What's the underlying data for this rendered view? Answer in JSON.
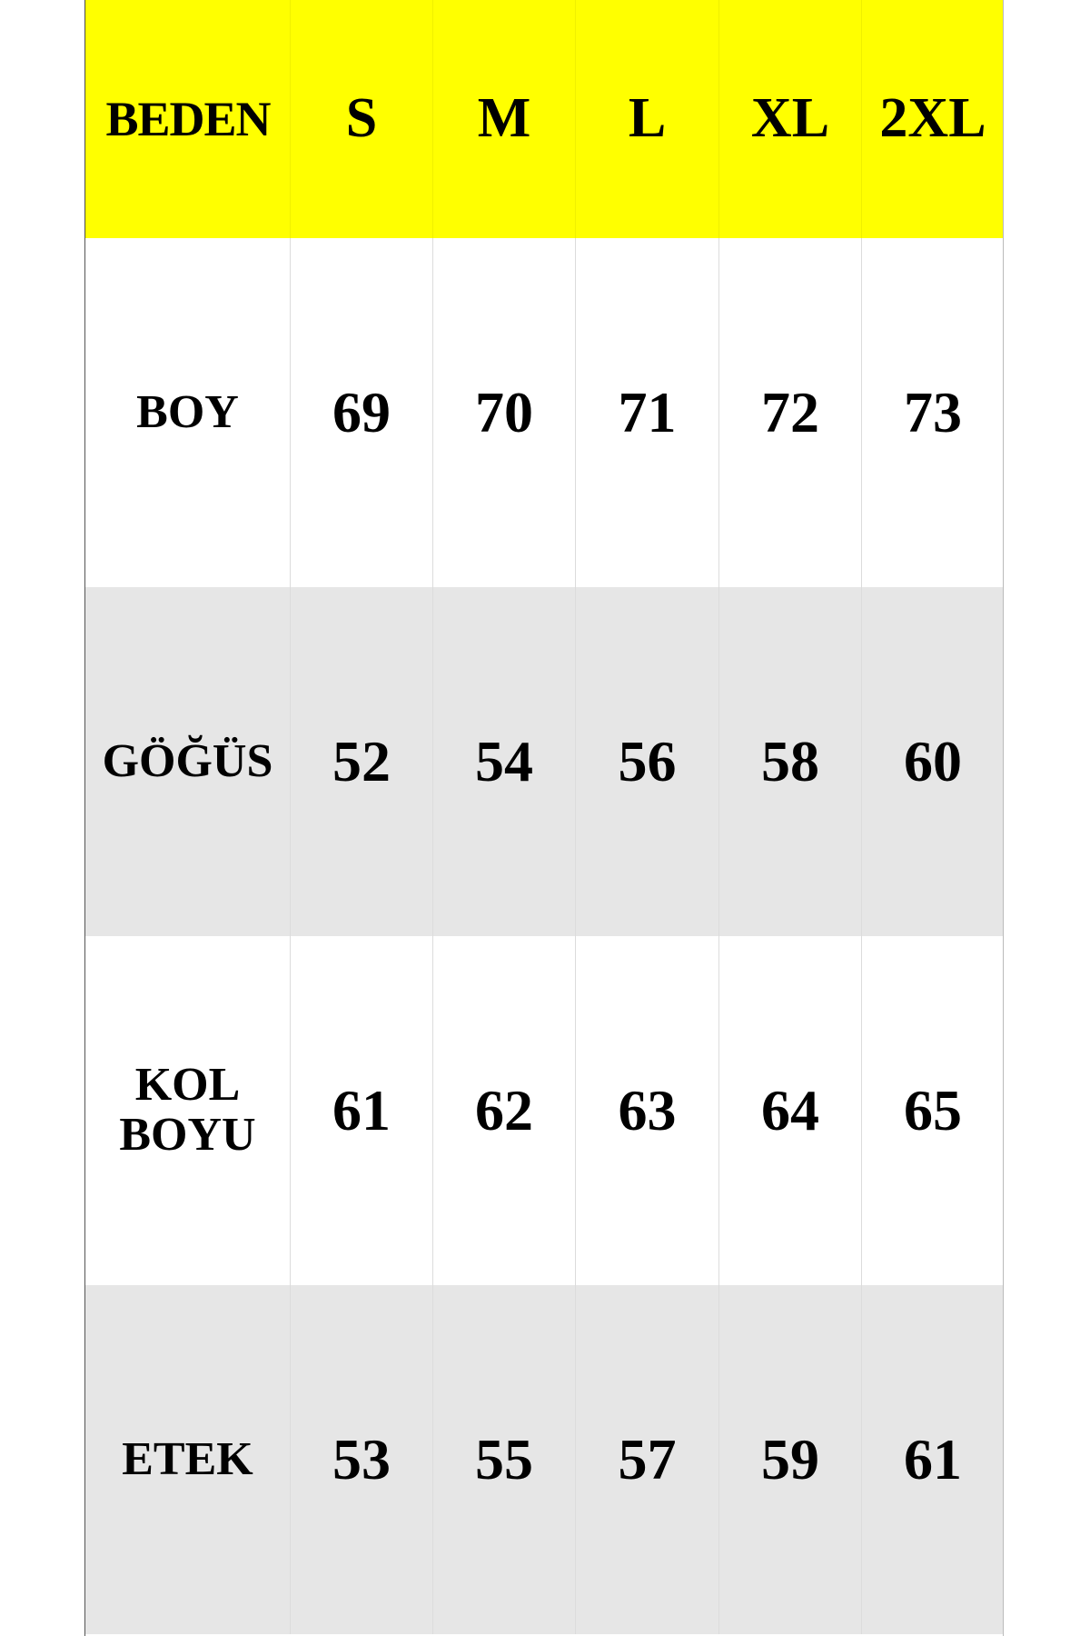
{
  "header": {
    "label": "BEDEN",
    "sizes": [
      "S",
      "M",
      "L",
      "XL",
      "2XL"
    ]
  },
  "rows": [
    {
      "label": "BOY",
      "values": [
        "69",
        "70",
        "71",
        "72",
        "73"
      ]
    },
    {
      "label": "GÖĞÜS",
      "values": [
        "52",
        "54",
        "56",
        "58",
        "60"
      ]
    },
    {
      "label_line1": "KOL",
      "label_line2": "BOYU",
      "values": [
        "61",
        "62",
        "63",
        "64",
        "65"
      ]
    },
    {
      "label": "ETEK",
      "values": [
        "53",
        "55",
        "57",
        "59",
        "61"
      ]
    }
  ],
  "colors": {
    "header_bg": "#ffff00",
    "alt_row_bg": "#e6e6e6"
  }
}
